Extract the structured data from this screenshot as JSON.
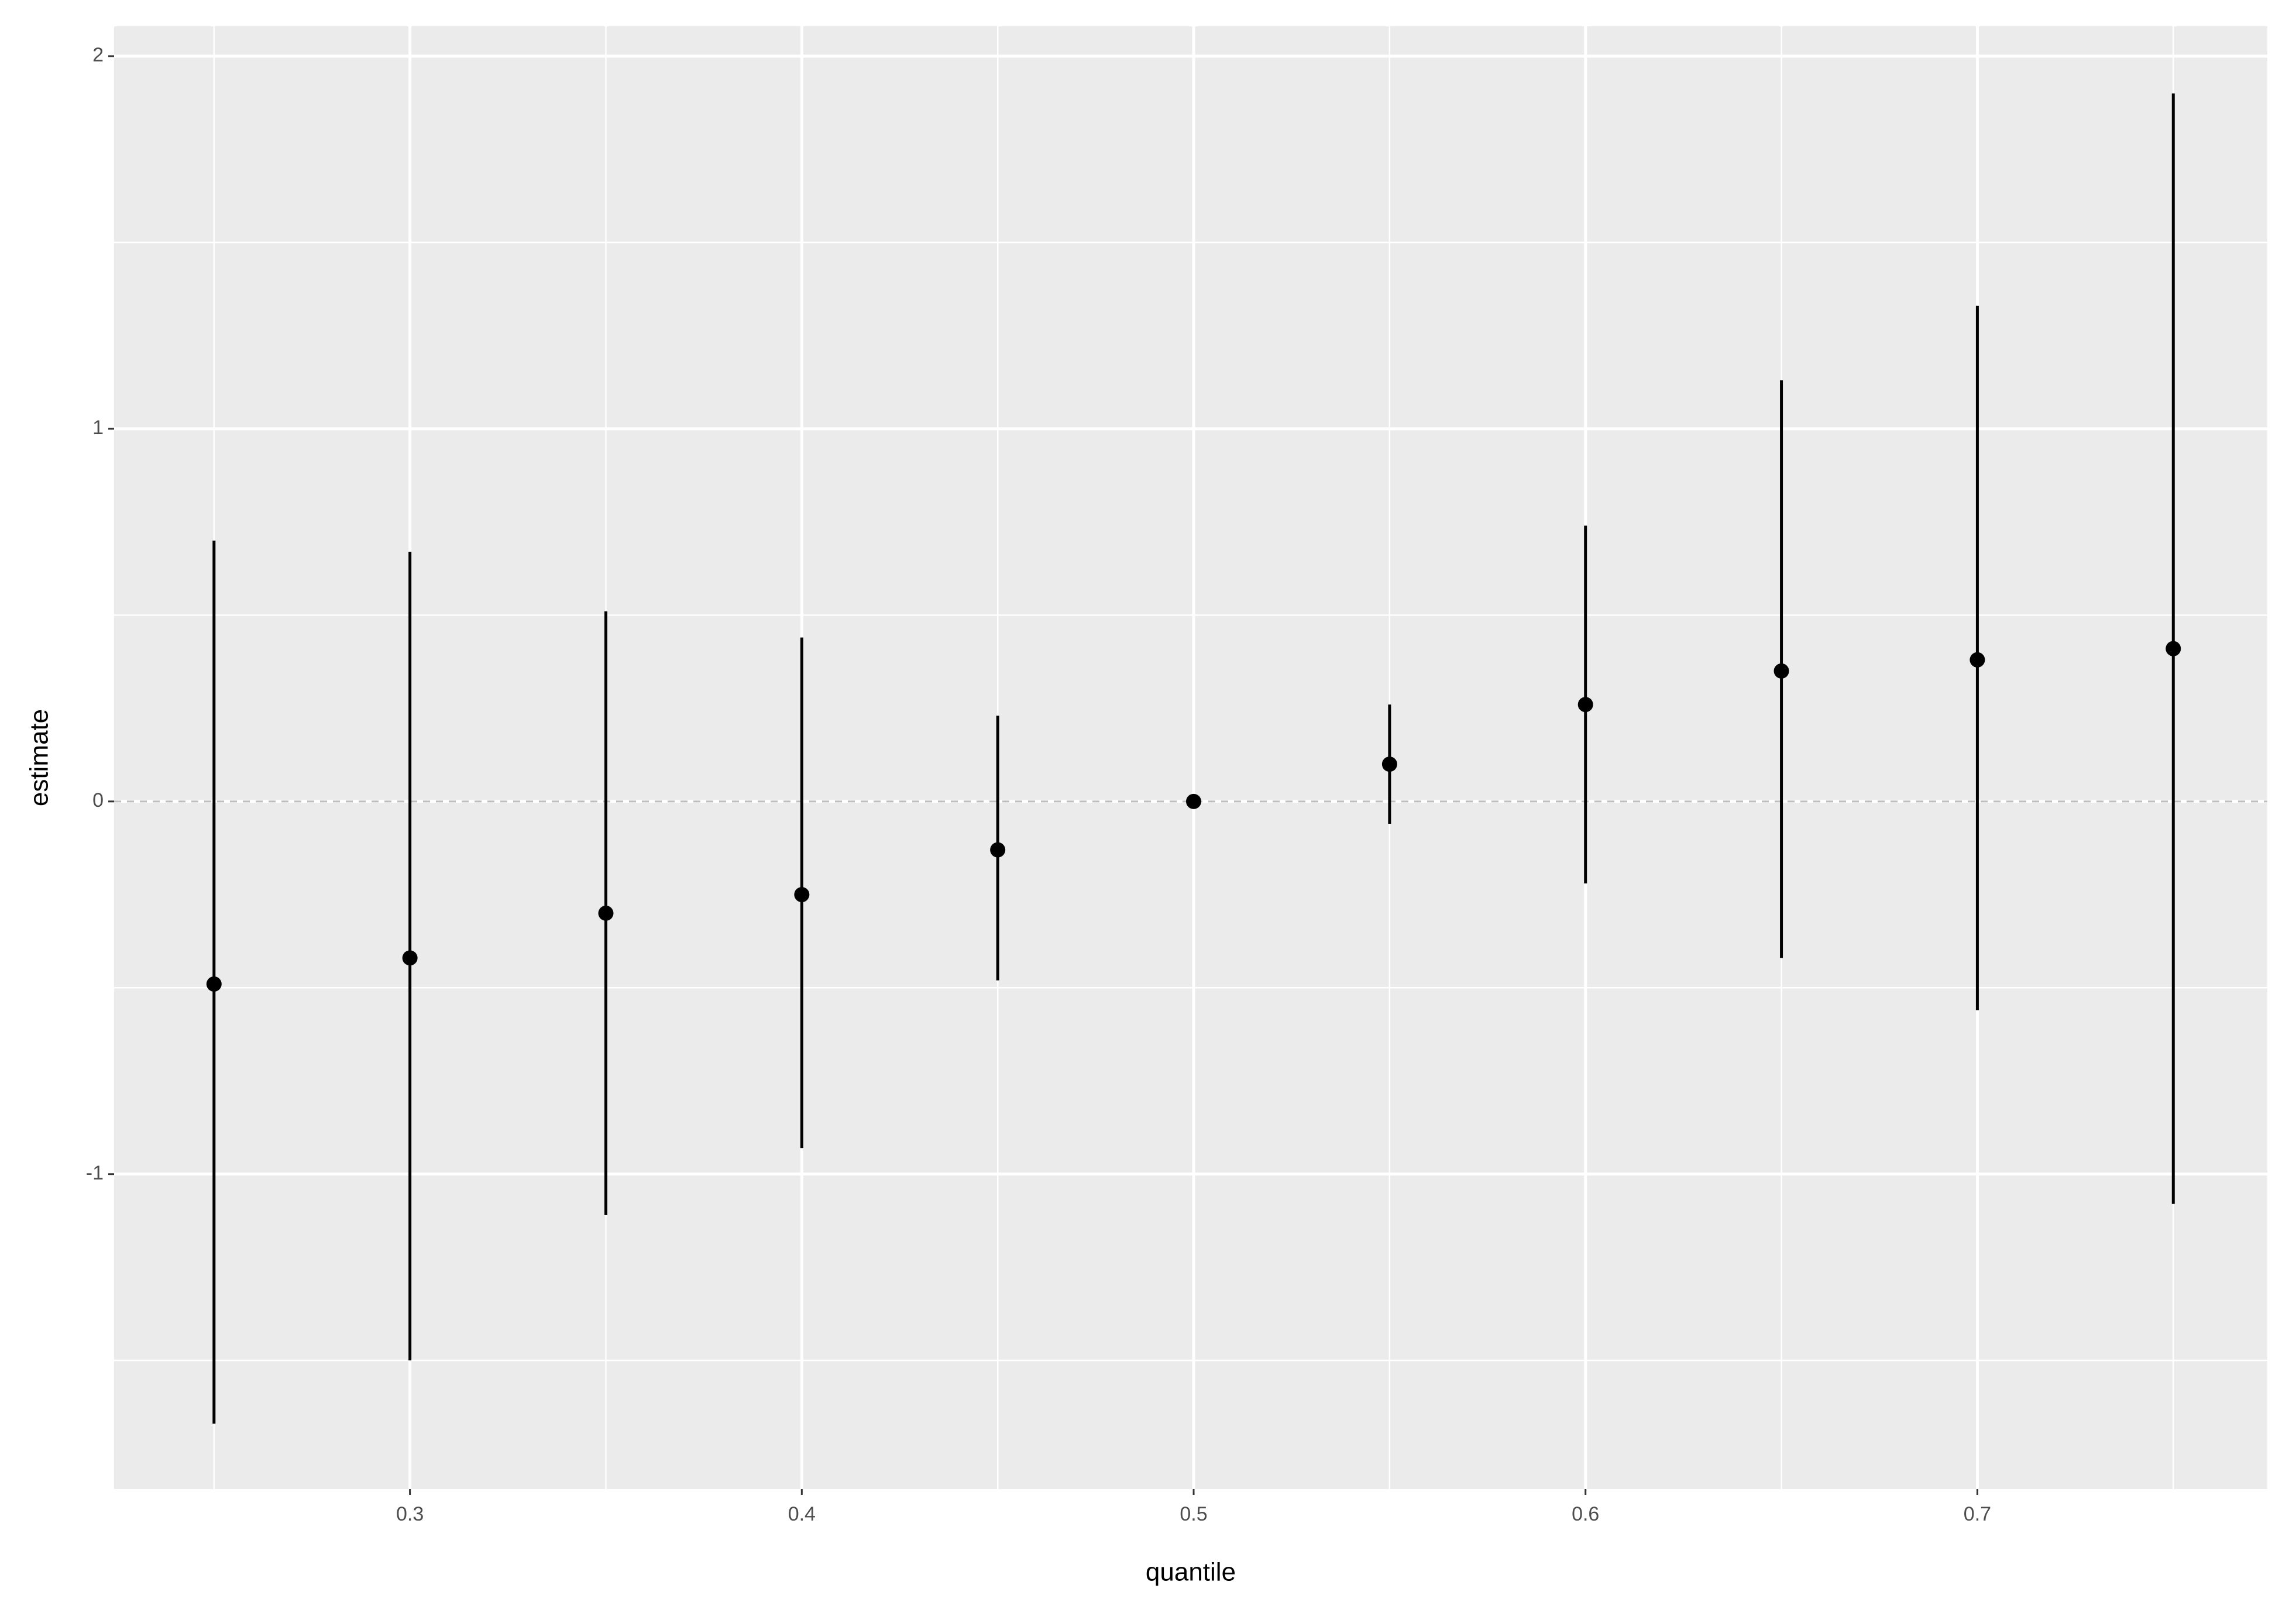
{
  "chart_data": {
    "type": "pointrange",
    "x_label": "quantile",
    "y_label": "estimate",
    "x": [
      0.25,
      0.3,
      0.35,
      0.4,
      0.45,
      0.5,
      0.55,
      0.6,
      0.65,
      0.7,
      0.75
    ],
    "values": [
      -0.49,
      -0.42,
      -0.3,
      -0.25,
      -0.13,
      0,
      0.1,
      0.26,
      0.35,
      0.38,
      0.41
    ],
    "lower": [
      -1.67,
      -1.5,
      -1.11,
      -0.93,
      -0.48,
      0,
      -0.06,
      -0.22,
      -0.42,
      -0.56,
      -1.08
    ],
    "upper": [
      0.7,
      0.67,
      0.51,
      0.44,
      0.23,
      0,
      0.26,
      0.74,
      1.13,
      1.33,
      1.9
    ],
    "color": "#000000",
    "xlim": [
      0.2245,
      0.774
    ],
    "ylim": [
      -1.845,
      2.08
    ],
    "xticks": [
      0.3,
      0.4,
      0.5,
      0.6,
      0.7
    ],
    "yticks": [
      -1,
      0,
      1,
      2
    ],
    "minor_xticks": [
      0.25,
      0.35,
      0.45,
      0.55,
      0.65,
      0.75
    ],
    "minor_yticks": [
      -1.5,
      -0.5,
      0.5,
      1.5
    ],
    "hline": 0,
    "grid": true
  }
}
